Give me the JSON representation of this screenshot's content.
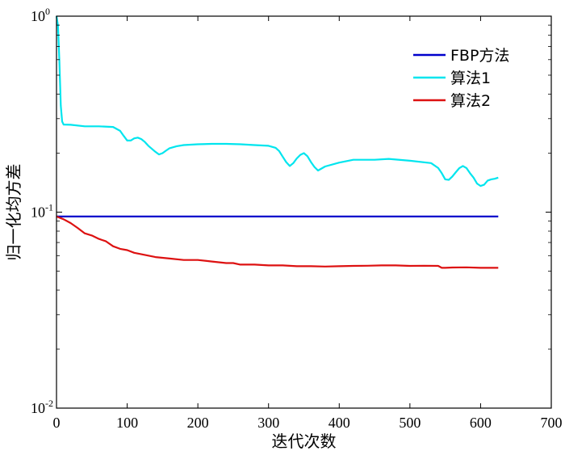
{
  "chart_data": {
    "type": "line",
    "xlabel": "迭代次数",
    "ylabel": "归一化均方差",
    "xlim": [
      0,
      700
    ],
    "ylim": [
      0.01,
      1
    ],
    "y_scale": "log",
    "grid": false,
    "legend_position": "top-right",
    "x_ticks": [
      "0",
      "100",
      "200",
      "300",
      "400",
      "500",
      "600",
      "700"
    ],
    "y_ticks": [
      {
        "base": "10",
        "exp": "0",
        "value": 1
      },
      {
        "base": "10",
        "exp": "-1",
        "value": 0.1
      },
      {
        "base": "10",
        "exp": "-2",
        "value": 0.01
      }
    ],
    "series": [
      {
        "name": "FBP方法",
        "color": "#0000cc",
        "x": [
          0,
          625
        ],
        "y": [
          0.095,
          0.095
        ]
      },
      {
        "name": "算法1",
        "color": "#00e5ee",
        "x": [
          0,
          2,
          4,
          6,
          8,
          10,
          20,
          40,
          60,
          80,
          90,
          95,
          100,
          105,
          110,
          115,
          120,
          125,
          130,
          140,
          145,
          150,
          155,
          160,
          170,
          180,
          200,
          220,
          240,
          260,
          280,
          300,
          310,
          315,
          320,
          325,
          330,
          335,
          340,
          345,
          350,
          355,
          360,
          365,
          370,
          375,
          380,
          400,
          420,
          450,
          470,
          500,
          530,
          540,
          545,
          550,
          555,
          560,
          565,
          570,
          575,
          580,
          585,
          590,
          595,
          600,
          605,
          610,
          615,
          620,
          625
        ],
        "y": [
          1.0,
          0.9,
          0.6,
          0.35,
          0.29,
          0.28,
          0.279,
          0.274,
          0.274,
          0.272,
          0.26,
          0.245,
          0.232,
          0.232,
          0.238,
          0.24,
          0.236,
          0.228,
          0.218,
          0.203,
          0.197,
          0.2,
          0.206,
          0.212,
          0.217,
          0.22,
          0.222,
          0.223,
          0.223,
          0.222,
          0.22,
          0.218,
          0.213,
          0.205,
          0.192,
          0.18,
          0.172,
          0.178,
          0.188,
          0.196,
          0.2,
          0.193,
          0.18,
          0.17,
          0.163,
          0.167,
          0.171,
          0.179,
          0.185,
          0.185,
          0.187,
          0.183,
          0.178,
          0.168,
          0.158,
          0.147,
          0.146,
          0.152,
          0.16,
          0.168,
          0.172,
          0.168,
          0.158,
          0.15,
          0.14,
          0.136,
          0.138,
          0.145,
          0.147,
          0.148,
          0.15
        ]
      },
      {
        "name": "算法2",
        "color": "#dd1111",
        "x": [
          0,
          10,
          20,
          30,
          40,
          50,
          60,
          70,
          80,
          90,
          100,
          110,
          120,
          140,
          160,
          180,
          200,
          220,
          240,
          250,
          260,
          280,
          300,
          320,
          340,
          360,
          380,
          400,
          420,
          440,
          460,
          480,
          500,
          520,
          540,
          545,
          550,
          560,
          580,
          600,
          625
        ],
        "y": [
          0.095,
          0.092,
          0.088,
          0.083,
          0.078,
          0.076,
          0.073,
          0.071,
          0.067,
          0.065,
          0.064,
          0.062,
          0.061,
          0.059,
          0.058,
          0.057,
          0.057,
          0.056,
          0.055,
          0.055,
          0.054,
          0.054,
          0.0535,
          0.0535,
          0.053,
          0.053,
          0.0528,
          0.053,
          0.0532,
          0.0533,
          0.0535,
          0.0535,
          0.0532,
          0.0533,
          0.0532,
          0.052,
          0.052,
          0.0522,
          0.0523,
          0.052,
          0.052
        ]
      }
    ]
  }
}
